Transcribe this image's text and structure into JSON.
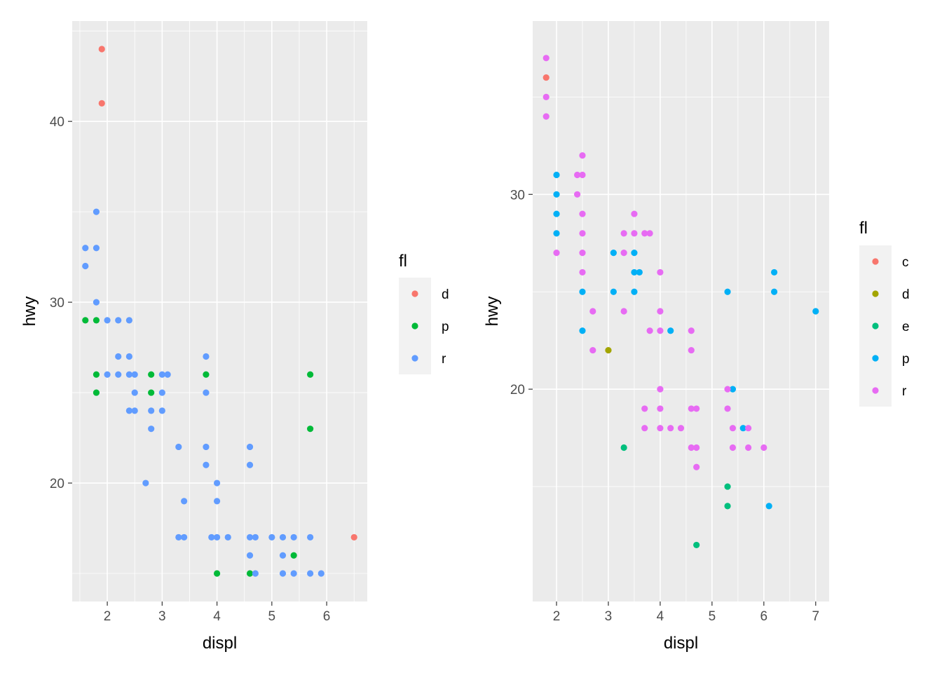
{
  "chart_data": [
    {
      "type": "scatter",
      "xlabel": "displ",
      "ylabel": "hwy",
      "xticks": [
        2,
        3,
        4,
        5,
        6
      ],
      "yticks": [
        20,
        30,
        40
      ],
      "xlim": [
        1.36,
        6.74
      ],
      "ylim": [
        13.45,
        45.55
      ],
      "legend": {
        "title": "fl",
        "position": "right",
        "categories": [
          "d",
          "p",
          "r"
        ]
      },
      "colors": {
        "d": "#F8766D",
        "p": "#00BA38",
        "r": "#619CFF"
      },
      "grid": true,
      "background": "#EBEBEB",
      "points": [
        {
          "x": 1.9,
          "y": 44,
          "fl": "d"
        },
        {
          "x": 1.9,
          "y": 41,
          "fl": "d"
        },
        {
          "x": 6.5,
          "y": 17,
          "fl": "d"
        },
        {
          "x": 1.6,
          "y": 29,
          "fl": "p"
        },
        {
          "x": 1.8,
          "y": 29,
          "fl": "p"
        },
        {
          "x": 1.8,
          "y": 26,
          "fl": "p"
        },
        {
          "x": 1.8,
          "y": 25,
          "fl": "p"
        },
        {
          "x": 2.8,
          "y": 26,
          "fl": "p"
        },
        {
          "x": 2.8,
          "y": 25,
          "fl": "p"
        },
        {
          "x": 3.8,
          "y": 26,
          "fl": "p"
        },
        {
          "x": 4.0,
          "y": 15,
          "fl": "p"
        },
        {
          "x": 4.6,
          "y": 15,
          "fl": "p"
        },
        {
          "x": 5.4,
          "y": 16,
          "fl": "p"
        },
        {
          "x": 5.7,
          "y": 26,
          "fl": "p"
        },
        {
          "x": 5.7,
          "y": 23,
          "fl": "p"
        },
        {
          "x": 1.6,
          "y": 33,
          "fl": "r"
        },
        {
          "x": 1.6,
          "y": 32,
          "fl": "r"
        },
        {
          "x": 1.8,
          "y": 35,
          "fl": "r"
        },
        {
          "x": 1.8,
          "y": 33,
          "fl": "r"
        },
        {
          "x": 1.8,
          "y": 30,
          "fl": "r"
        },
        {
          "x": 2.0,
          "y": 29,
          "fl": "r"
        },
        {
          "x": 2.2,
          "y": 29,
          "fl": "r"
        },
        {
          "x": 2.4,
          "y": 29,
          "fl": "r"
        },
        {
          "x": 2.2,
          "y": 27,
          "fl": "r"
        },
        {
          "x": 2.4,
          "y": 27,
          "fl": "r"
        },
        {
          "x": 2.0,
          "y": 26,
          "fl": "r"
        },
        {
          "x": 2.2,
          "y": 26,
          "fl": "r"
        },
        {
          "x": 2.4,
          "y": 26,
          "fl": "r"
        },
        {
          "x": 2.5,
          "y": 26,
          "fl": "r"
        },
        {
          "x": 2.5,
          "y": 25,
          "fl": "r"
        },
        {
          "x": 2.4,
          "y": 24,
          "fl": "r"
        },
        {
          "x": 2.5,
          "y": 24,
          "fl": "r"
        },
        {
          "x": 2.8,
          "y": 24,
          "fl": "r"
        },
        {
          "x": 2.8,
          "y": 23,
          "fl": "r"
        },
        {
          "x": 3.0,
          "y": 26,
          "fl": "r"
        },
        {
          "x": 3.1,
          "y": 26,
          "fl": "r"
        },
        {
          "x": 3.0,
          "y": 25,
          "fl": "r"
        },
        {
          "x": 3.0,
          "y": 24,
          "fl": "r"
        },
        {
          "x": 2.7,
          "y": 20,
          "fl": "r"
        },
        {
          "x": 3.3,
          "y": 22,
          "fl": "r"
        },
        {
          "x": 3.4,
          "y": 19,
          "fl": "r"
        },
        {
          "x": 3.3,
          "y": 17,
          "fl": "r"
        },
        {
          "x": 3.4,
          "y": 17,
          "fl": "r"
        },
        {
          "x": 3.8,
          "y": 27,
          "fl": "r"
        },
        {
          "x": 3.8,
          "y": 25,
          "fl": "r"
        },
        {
          "x": 3.8,
          "y": 22,
          "fl": "r"
        },
        {
          "x": 3.8,
          "y": 21,
          "fl": "r"
        },
        {
          "x": 4.0,
          "y": 20,
          "fl": "r"
        },
        {
          "x": 4.0,
          "y": 19,
          "fl": "r"
        },
        {
          "x": 3.9,
          "y": 17,
          "fl": "r"
        },
        {
          "x": 4.0,
          "y": 17,
          "fl": "r"
        },
        {
          "x": 4.2,
          "y": 17,
          "fl": "r"
        },
        {
          "x": 4.6,
          "y": 22,
          "fl": "r"
        },
        {
          "x": 4.6,
          "y": 21,
          "fl": "r"
        },
        {
          "x": 4.6,
          "y": 17,
          "fl": "r"
        },
        {
          "x": 4.7,
          "y": 17,
          "fl": "r"
        },
        {
          "x": 4.6,
          "y": 16,
          "fl": "r"
        },
        {
          "x": 4.7,
          "y": 15,
          "fl": "r"
        },
        {
          "x": 5.0,
          "y": 17,
          "fl": "r"
        },
        {
          "x": 5.2,
          "y": 17,
          "fl": "r"
        },
        {
          "x": 5.4,
          "y": 17,
          "fl": "r"
        },
        {
          "x": 5.7,
          "y": 17,
          "fl": "r"
        },
        {
          "x": 5.2,
          "y": 16,
          "fl": "r"
        },
        {
          "x": 5.2,
          "y": 15,
          "fl": "r"
        },
        {
          "x": 5.4,
          "y": 15,
          "fl": "r"
        },
        {
          "x": 5.7,
          "y": 15,
          "fl": "r"
        },
        {
          "x": 5.9,
          "y": 15,
          "fl": "r"
        }
      ]
    },
    {
      "type": "scatter",
      "xlabel": "displ",
      "ylabel": "hwy",
      "xticks": [
        2,
        3,
        4,
        5,
        6,
        7
      ],
      "yticks": [
        20,
        30
      ],
      "xlim": [
        1.54,
        7.26
      ],
      "ylim": [
        9.1,
        38.9
      ],
      "legend": {
        "title": "fl",
        "position": "right",
        "categories": [
          "c",
          "d",
          "e",
          "p",
          "r"
        ]
      },
      "colors": {
        "c": "#F8766D",
        "d": "#A3A500",
        "e": "#00BF7D",
        "p": "#00B0F6",
        "r": "#E76BF3"
      },
      "grid": true,
      "background": "#EBEBEB",
      "points": [
        {
          "x": 1.8,
          "y": 36,
          "fl": "c"
        },
        {
          "x": 3.0,
          "y": 22,
          "fl": "d"
        },
        {
          "x": 3.3,
          "y": 17,
          "fl": "e"
        },
        {
          "x": 4.7,
          "y": 12,
          "fl": "e"
        },
        {
          "x": 5.3,
          "y": 15,
          "fl": "e"
        },
        {
          "x": 5.3,
          "y": 14,
          "fl": "e"
        },
        {
          "x": 2.0,
          "y": 31,
          "fl": "p"
        },
        {
          "x": 2.0,
          "y": 30,
          "fl": "p"
        },
        {
          "x": 2.0,
          "y": 29,
          "fl": "p"
        },
        {
          "x": 2.0,
          "y": 28,
          "fl": "p"
        },
        {
          "x": 2.5,
          "y": 25,
          "fl": "p"
        },
        {
          "x": 2.5,
          "y": 23,
          "fl": "p"
        },
        {
          "x": 3.1,
          "y": 27,
          "fl": "p"
        },
        {
          "x": 3.1,
          "y": 25,
          "fl": "p"
        },
        {
          "x": 3.5,
          "y": 27,
          "fl": "p"
        },
        {
          "x": 3.5,
          "y": 26,
          "fl": "p"
        },
        {
          "x": 3.5,
          "y": 25,
          "fl": "p"
        },
        {
          "x": 3.6,
          "y": 26,
          "fl": "p"
        },
        {
          "x": 4.2,
          "y": 23,
          "fl": "p"
        },
        {
          "x": 5.3,
          "y": 25,
          "fl": "p"
        },
        {
          "x": 5.4,
          "y": 20,
          "fl": "p"
        },
        {
          "x": 5.6,
          "y": 18,
          "fl": "p"
        },
        {
          "x": 6.1,
          "y": 14,
          "fl": "p"
        },
        {
          "x": 6.2,
          "y": 26,
          "fl": "p"
        },
        {
          "x": 6.2,
          "y": 25,
          "fl": "p"
        },
        {
          "x": 7.0,
          "y": 24,
          "fl": "p"
        },
        {
          "x": 1.8,
          "y": 37,
          "fl": "r"
        },
        {
          "x": 1.8,
          "y": 35,
          "fl": "r"
        },
        {
          "x": 1.8,
          "y": 34,
          "fl": "r"
        },
        {
          "x": 2.0,
          "y": 27,
          "fl": "r"
        },
        {
          "x": 2.4,
          "y": 31,
          "fl": "r"
        },
        {
          "x": 2.5,
          "y": 31,
          "fl": "r"
        },
        {
          "x": 2.5,
          "y": 32,
          "fl": "r"
        },
        {
          "x": 2.4,
          "y": 30,
          "fl": "r"
        },
        {
          "x": 2.5,
          "y": 29,
          "fl": "r"
        },
        {
          "x": 2.5,
          "y": 28,
          "fl": "r"
        },
        {
          "x": 2.5,
          "y": 27,
          "fl": "r"
        },
        {
          "x": 2.5,
          "y": 26,
          "fl": "r"
        },
        {
          "x": 2.7,
          "y": 24,
          "fl": "r"
        },
        {
          "x": 2.7,
          "y": 22,
          "fl": "r"
        },
        {
          "x": 3.3,
          "y": 28,
          "fl": "r"
        },
        {
          "x": 3.3,
          "y": 27,
          "fl": "r"
        },
        {
          "x": 3.3,
          "y": 24,
          "fl": "r"
        },
        {
          "x": 3.5,
          "y": 29,
          "fl": "r"
        },
        {
          "x": 3.5,
          "y": 28,
          "fl": "r"
        },
        {
          "x": 3.7,
          "y": 28,
          "fl": "r"
        },
        {
          "x": 3.8,
          "y": 28,
          "fl": "r"
        },
        {
          "x": 3.8,
          "y": 23,
          "fl": "r"
        },
        {
          "x": 4.0,
          "y": 26,
          "fl": "r"
        },
        {
          "x": 4.0,
          "y": 24,
          "fl": "r"
        },
        {
          "x": 4.0,
          "y": 23,
          "fl": "r"
        },
        {
          "x": 4.0,
          "y": 20,
          "fl": "r"
        },
        {
          "x": 4.0,
          "y": 19,
          "fl": "r"
        },
        {
          "x": 4.0,
          "y": 18,
          "fl": "r"
        },
        {
          "x": 3.7,
          "y": 19,
          "fl": "r"
        },
        {
          "x": 3.7,
          "y": 18,
          "fl": "r"
        },
        {
          "x": 4.2,
          "y": 18,
          "fl": "r"
        },
        {
          "x": 4.4,
          "y": 18,
          "fl": "r"
        },
        {
          "x": 4.6,
          "y": 23,
          "fl": "r"
        },
        {
          "x": 4.6,
          "y": 22,
          "fl": "r"
        },
        {
          "x": 4.6,
          "y": 19,
          "fl": "r"
        },
        {
          "x": 4.7,
          "y": 19,
          "fl": "r"
        },
        {
          "x": 4.6,
          "y": 17,
          "fl": "r"
        },
        {
          "x": 4.7,
          "y": 17,
          "fl": "r"
        },
        {
          "x": 4.7,
          "y": 16,
          "fl": "r"
        },
        {
          "x": 5.3,
          "y": 20,
          "fl": "r"
        },
        {
          "x": 5.3,
          "y": 19,
          "fl": "r"
        },
        {
          "x": 5.4,
          "y": 18,
          "fl": "r"
        },
        {
          "x": 5.7,
          "y": 18,
          "fl": "r"
        },
        {
          "x": 5.4,
          "y": 17,
          "fl": "r"
        },
        {
          "x": 5.7,
          "y": 17,
          "fl": "r"
        },
        {
          "x": 6.0,
          "y": 17,
          "fl": "r"
        }
      ]
    }
  ]
}
